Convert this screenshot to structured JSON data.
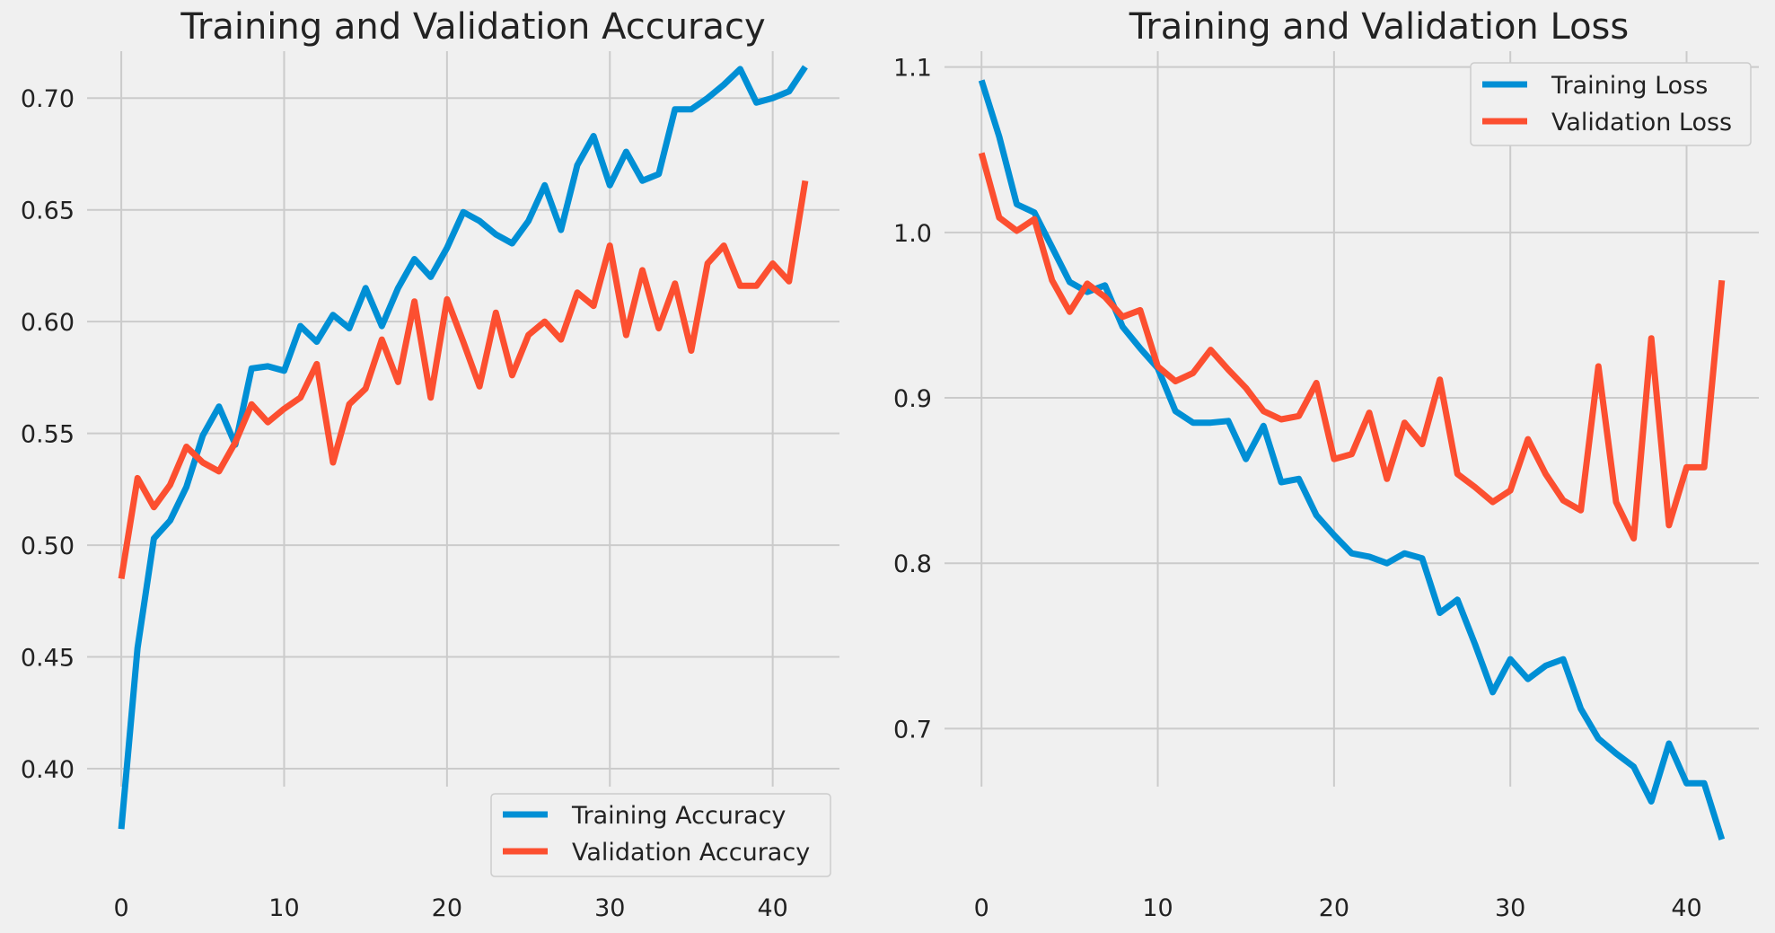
{
  "colors": {
    "background": "#f0f0f0",
    "grid": "#cbcbcb",
    "training": "#008fd5",
    "validation": "#fc4f30"
  },
  "chart_data": [
    {
      "type": "line",
      "title": "Training and Validation Accuracy",
      "xlabel": "",
      "ylabel": "",
      "xlim": [
        -2.1,
        44.1
      ],
      "ylim": [
        0.355,
        0.725
      ],
      "xticks": [
        0,
        10,
        20,
        30,
        40
      ],
      "xtick_labels": [
        "0",
        "10",
        "20",
        "30",
        "40"
      ],
      "yticks": [
        0.4,
        0.45,
        0.5,
        0.55,
        0.6,
        0.65,
        0.7
      ],
      "ytick_labels": [
        "0.40",
        "0.45",
        "0.50",
        "0.55",
        "0.60",
        "0.65",
        "0.70"
      ],
      "grid": true,
      "legend_position": "lower-right",
      "series": [
        {
          "name": "Training Accuracy",
          "color": "#008fd5",
          "values": [
            0.373,
            0.454,
            0.503,
            0.511,
            0.526,
            0.549,
            0.562,
            0.545,
            0.579,
            0.58,
            0.578,
            0.598,
            0.591,
            0.603,
            0.597,
            0.615,
            0.598,
            0.615,
            0.628,
            0.62,
            0.633,
            0.649,
            0.645,
            0.639,
            0.635,
            0.645,
            0.661,
            0.641,
            0.67,
            0.683,
            0.661,
            0.676,
            0.663,
            0.666,
            0.695,
            0.695,
            0.7,
            0.706,
            0.713,
            0.698,
            0.7,
            0.703,
            0.714
          ]
        },
        {
          "name": "Validation Accuracy",
          "color": "#fc4f30",
          "values": [
            0.485,
            0.53,
            0.517,
            0.527,
            0.544,
            0.537,
            0.533,
            0.546,
            0.563,
            0.555,
            0.561,
            0.566,
            0.581,
            0.537,
            0.563,
            0.57,
            0.592,
            0.573,
            0.609,
            0.566,
            0.61,
            0.591,
            0.571,
            0.604,
            0.576,
            0.594,
            0.6,
            0.592,
            0.613,
            0.607,
            0.634,
            0.594,
            0.623,
            0.597,
            0.617,
            0.587,
            0.626,
            0.634,
            0.616,
            0.616,
            0.626,
            0.618,
            0.663
          ]
        }
      ]
    },
    {
      "type": "line",
      "title": "Training and Validation Loss",
      "xlabel": "",
      "ylabel": "",
      "xlim": [
        -2.1,
        44.1
      ],
      "ylim": [
        0.615,
        1.115
      ],
      "xticks": [
        0,
        10,
        20,
        30,
        40
      ],
      "xtick_labels": [
        "0",
        "10",
        "20",
        "30",
        "40"
      ],
      "yticks": [
        0.7,
        0.8,
        0.9,
        1.0,
        1.1
      ],
      "ytick_labels": [
        "0.7",
        "0.8",
        "0.9",
        "1.0",
        "1.1"
      ],
      "grid": true,
      "legend_position": "upper-right",
      "series": [
        {
          "name": "Training Loss",
          "color": "#008fd5",
          "values": [
            1.092,
            1.058,
            1.017,
            1.012,
            0.991,
            0.97,
            0.964,
            0.968,
            0.943,
            0.93,
            0.918,
            0.892,
            0.885,
            0.885,
            0.886,
            0.863,
            0.883,
            0.849,
            0.851,
            0.829,
            0.817,
            0.806,
            0.804,
            0.8,
            0.806,
            0.803,
            0.77,
            0.778,
            0.751,
            0.722,
            0.742,
            0.73,
            0.738,
            0.742,
            0.712,
            0.694,
            0.685,
            0.677,
            0.656,
            0.691,
            0.667,
            0.667,
            0.633
          ]
        },
        {
          "name": "Validation Loss",
          "color": "#fc4f30",
          "values": [
            1.048,
            1.009,
            1.001,
            1.008,
            0.971,
            0.952,
            0.969,
            0.961,
            0.949,
            0.953,
            0.919,
            0.91,
            0.915,
            0.929,
            0.917,
            0.906,
            0.892,
            0.887,
            0.889,
            0.909,
            0.863,
            0.866,
            0.891,
            0.851,
            0.885,
            0.872,
            0.911,
            0.854,
            0.846,
            0.837,
            0.844,
            0.875,
            0.854,
            0.838,
            0.832,
            0.919,
            0.837,
            0.815,
            0.936,
            0.823,
            0.858,
            0.858,
            0.971
          ]
        }
      ]
    }
  ]
}
